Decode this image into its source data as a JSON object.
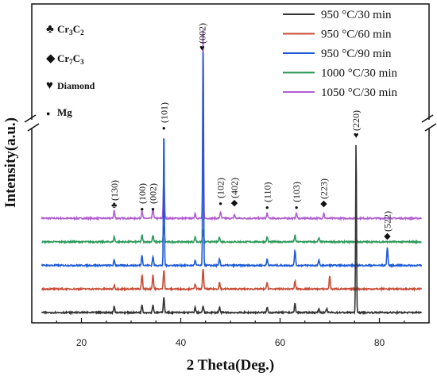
{
  "chart_data": {
    "type": "line",
    "title": "",
    "xlabel": "2 Theta(Deg.)",
    "ylabel": "Intensity(a.u.)",
    "xlim": [
      10,
      90
    ],
    "xticks": [
      20,
      40,
      60,
      80
    ],
    "y_axis_break": true,
    "legend_position": "top-right",
    "phase_markers": [
      {
        "symbol": "♣",
        "text": "Cr",
        "sub1": "3",
        "mid": "C",
        "sub2": "2"
      },
      {
        "symbol": "◆",
        "text": "Cr",
        "sub1": "7",
        "mid": "C",
        "sub2": "3"
      },
      {
        "symbol": "♥",
        "text": "Diamond"
      },
      {
        "symbol": "●",
        "text": "Mg"
      }
    ],
    "series": [
      {
        "name": "950 °C/30 min",
        "color": "#333333",
        "baseline": 0,
        "peaks": [
          [
            26.6,
            5
          ],
          [
            32.2,
            6
          ],
          [
            34.4,
            6
          ],
          [
            36.6,
            12
          ],
          [
            42.9,
            4
          ],
          [
            44.5,
            5
          ],
          [
            47.8,
            4
          ],
          [
            57.4,
            4
          ],
          [
            63.0,
            7
          ],
          [
            67.8,
            3
          ],
          [
            69.4,
            3
          ],
          [
            75.3,
            132
          ]
        ]
      },
      {
        "name": "950 °C/60 min",
        "color": "#c94b35",
        "baseline": 18,
        "peaks": [
          [
            26.6,
            3
          ],
          [
            32.2,
            11
          ],
          [
            34.4,
            11
          ],
          [
            36.6,
            15
          ],
          [
            42.9,
            4
          ],
          [
            44.5,
            16
          ],
          [
            47.8,
            5
          ],
          [
            57.4,
            5
          ],
          [
            63.0,
            6
          ],
          [
            70.0,
            10
          ]
        ]
      },
      {
        "name": "950 °C/90 min",
        "color": "#1f5bd6",
        "baseline": 36,
        "peaks": [
          [
            26.6,
            4
          ],
          [
            32.2,
            8
          ],
          [
            34.4,
            7
          ],
          [
            36.6,
            108
          ],
          [
            42.9,
            4
          ],
          [
            44.5,
            167
          ],
          [
            47.8,
            5
          ],
          [
            57.4,
            5
          ],
          [
            63.0,
            12
          ],
          [
            67.8,
            4
          ],
          [
            81.6,
            14
          ]
        ]
      },
      {
        "name": "1000 °C/30 min",
        "color": "#2e9a5c",
        "baseline": 54,
        "peaks": [
          [
            26.6,
            4
          ],
          [
            32.2,
            5
          ],
          [
            34.4,
            5
          ],
          [
            36.6,
            12
          ],
          [
            42.9,
            4
          ],
          [
            44.5,
            9
          ],
          [
            47.8,
            4
          ],
          [
            57.4,
            4
          ],
          [
            63.0,
            5
          ],
          [
            67.8,
            3
          ]
        ]
      },
      {
        "name": "1050 °C/30 min",
        "color": "#b15fd1",
        "baseline": 72,
        "peaks": [
          [
            26.6,
            6
          ],
          [
            32.2,
            6
          ],
          [
            34.4,
            8
          ],
          [
            36.6,
            33
          ],
          [
            42.9,
            4
          ],
          [
            44.5,
            148
          ],
          [
            48.0,
            5
          ],
          [
            50.8,
            3
          ],
          [
            57.4,
            4
          ],
          [
            63.3,
            4
          ],
          [
            68.8,
            4
          ]
        ]
      }
    ],
    "annotations": [
      {
        "label": "(130)",
        "x": 26.6,
        "marker": "♣"
      },
      {
        "label": "(100)",
        "x": 32.2,
        "marker": "●"
      },
      {
        "label": "(002)",
        "x": 34.4,
        "marker": "●"
      },
      {
        "label": "(101)",
        "x": 36.6,
        "marker": "●"
      },
      {
        "label": "(002)",
        "x": 44.3,
        "marker": "♥"
      },
      {
        "label": "(102)",
        "x": 48.0,
        "marker": "●"
      },
      {
        "label": "(402)",
        "x": 50.8,
        "marker": "◆"
      },
      {
        "label": "(110)",
        "x": 57.4,
        "marker": "●"
      },
      {
        "label": "(103)",
        "x": 63.3,
        "marker": "●"
      },
      {
        "label": "(223)",
        "x": 68.8,
        "marker": "◆"
      },
      {
        "label": "(220)",
        "x": 75.3,
        "marker": "♥"
      },
      {
        "label": "(522)",
        "x": 81.6,
        "marker": "◆"
      }
    ]
  }
}
